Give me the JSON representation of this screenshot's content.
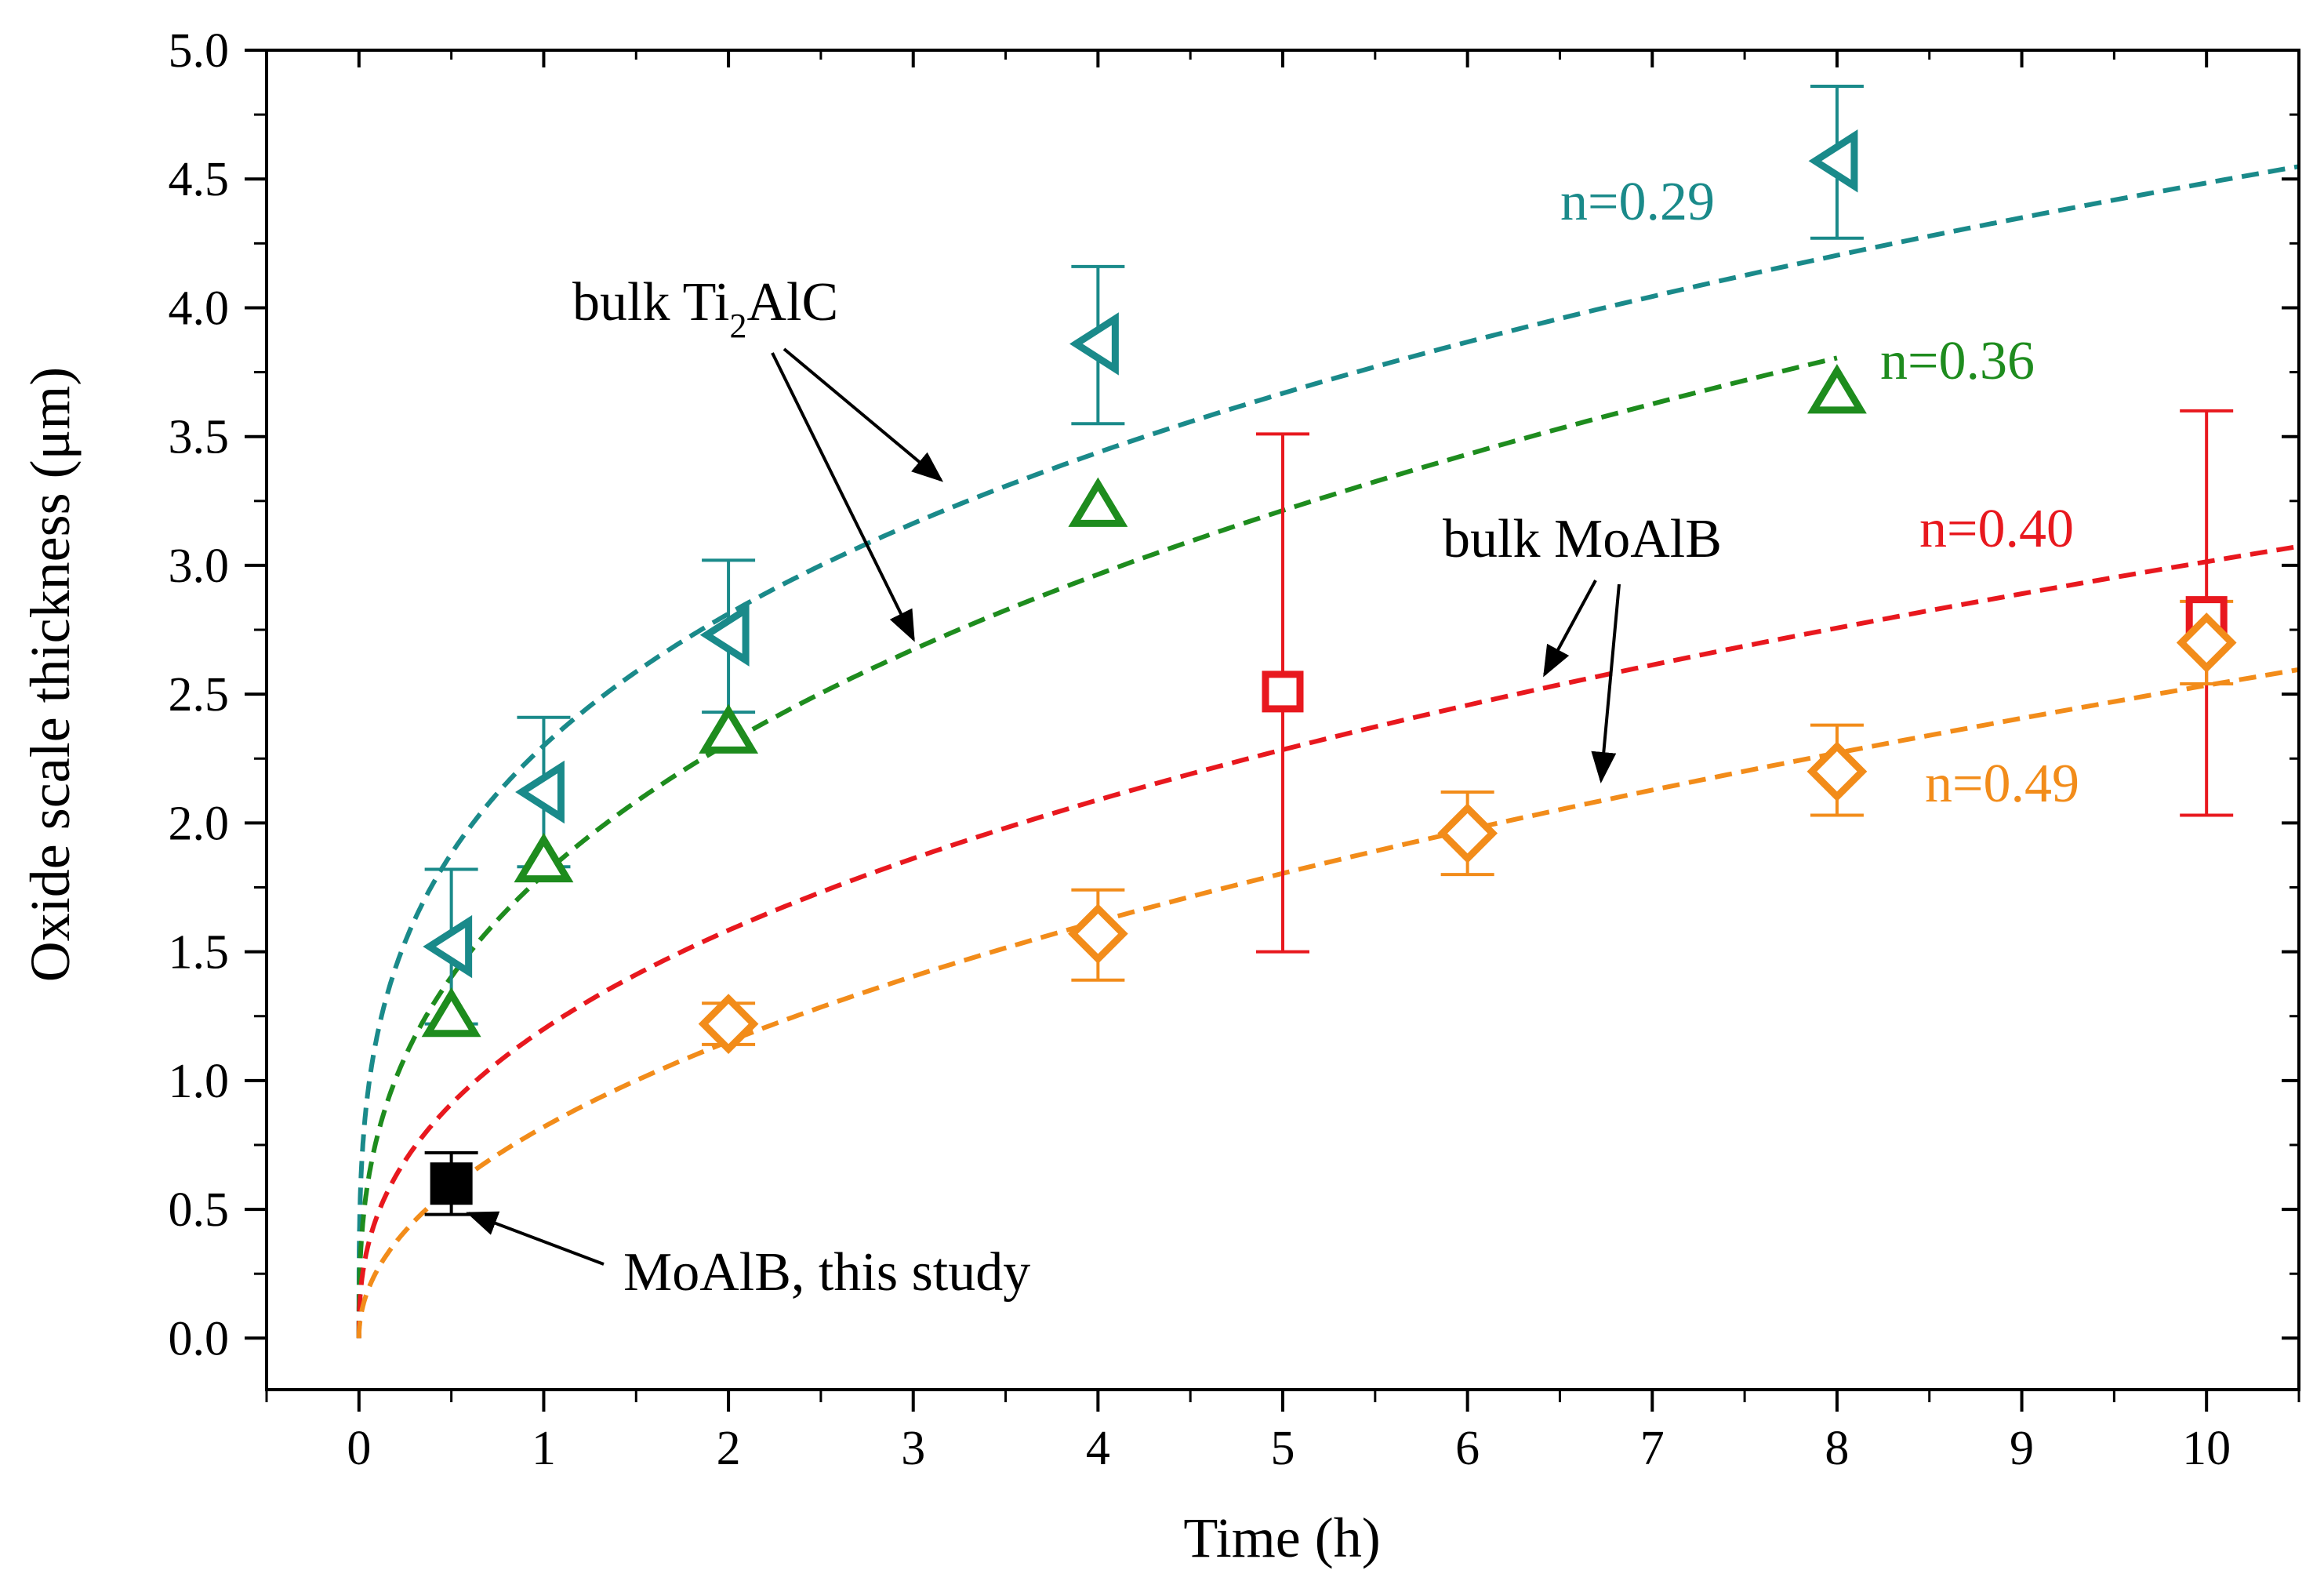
{
  "chart_data": {
    "type": "scatter",
    "title": "",
    "xlabel": "Time (h)",
    "ylabel": "Oxide scale thickness (μm)",
    "xlim": [
      -0.5,
      10.5
    ],
    "ylim": [
      -0.2,
      5.0
    ],
    "x_ticks": [
      0,
      1,
      2,
      3,
      4,
      5,
      6,
      7,
      8,
      9,
      10
    ],
    "x_tick_labels": [
      "0",
      "1",
      "2",
      "3",
      "4",
      "5",
      "6",
      "7",
      "8",
      "9",
      "10"
    ],
    "y_ticks": [
      0.0,
      0.5,
      1.0,
      1.5,
      2.0,
      2.5,
      3.0,
      3.5,
      4.0,
      4.5,
      5.0
    ],
    "y_tick_labels": [
      "0.0",
      "0.5",
      "1.0",
      "1.5",
      "2.0",
      "2.5",
      "3.0",
      "3.5",
      "4.0",
      "4.5",
      "5.0"
    ],
    "grid": false,
    "series": [
      {
        "name": "bulk Ti2AlC (left triangles)",
        "color": "#1a8a8a",
        "marker": "triangle-left",
        "x": [
          0.5,
          1,
          2,
          4,
          8
        ],
        "y": [
          1.52,
          2.12,
          2.73,
          3.86,
          4.57
        ],
        "err_low": [
          1.22,
          1.83,
          2.43,
          3.55,
          4.27
        ],
        "err_high": [
          1.82,
          2.41,
          3.02,
          4.16,
          4.86
        ],
        "fit": {
          "a": 2.3,
          "n": 0.29,
          "label": "n=0.29"
        }
      },
      {
        "name": "bulk Ti2AlC (up triangles)",
        "color": "#1e8c1e",
        "marker": "triangle-up",
        "x": [
          0.5,
          1,
          2,
          4,
          8
        ],
        "y": [
          1.25,
          1.85,
          2.35,
          3.23,
          3.67
        ],
        "fit": {
          "a": 1.8,
          "n": 0.36,
          "label": "n=0.36",
          "xmax": 8
        }
      },
      {
        "name": "bulk MoAlB (squares)",
        "color": "#e8181e",
        "marker": "square",
        "x": [
          5,
          10
        ],
        "y": [
          2.51,
          2.8
        ],
        "err_low": [
          1.5,
          2.03
        ],
        "err_high": [
          3.51,
          3.6
        ],
        "fit": {
          "a": 1.2,
          "n": 0.4,
          "label": "n=0.40"
        }
      },
      {
        "name": "bulk MoAlB (diamonds)",
        "color": "#f28c1a",
        "marker": "diamond",
        "x": [
          2,
          4,
          6,
          8,
          10
        ],
        "y": [
          1.22,
          1.57,
          1.96,
          2.2,
          2.7
        ],
        "err_low": [
          1.14,
          1.39,
          1.8,
          2.03,
          2.54
        ],
        "err_high": [
          1.3,
          1.74,
          2.12,
          2.38,
          2.86
        ],
        "fit": {
          "a": 0.82,
          "n": 0.49,
          "label": "n=0.49"
        }
      },
      {
        "name": "MoAlB, this study",
        "color": "#000000",
        "marker": "filled-square",
        "x": [
          0.5
        ],
        "y": [
          0.6
        ],
        "err_low": [
          0.48
        ],
        "err_high": [
          0.72
        ]
      }
    ],
    "annotations": [
      {
        "text": "bulk Ti",
        "sub": "2",
        "text_after": "AlC",
        "color": "#000000"
      },
      {
        "text": "bulk MoAlB",
        "color": "#000000"
      },
      {
        "text": "MoAlB, this study",
        "color": "#000000"
      },
      {
        "text": "n=0.29",
        "color": "#1a8a8a"
      },
      {
        "text": "n=0.36",
        "color": "#1e8c1e"
      },
      {
        "text": "n=0.40",
        "color": "#e8181e"
      },
      {
        "text": "n=0.49",
        "color": "#f28c1a"
      }
    ]
  }
}
